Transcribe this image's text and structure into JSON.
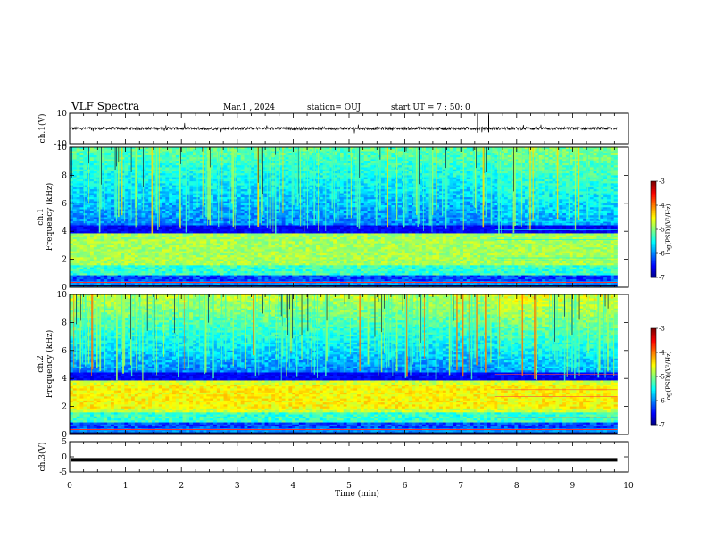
{
  "header": {
    "title": "VLF Spectra",
    "date": "Mar.1 , 2024",
    "station": "station= OUJ",
    "start": "start UT = 7 : 50: 0"
  },
  "colors": {
    "low": "#00007f",
    "mid": "#00ffaa",
    "high": "#ff0000",
    "waveform": "#000000"
  },
  "chart_data": [
    {
      "type": "line",
      "panel": "ch1-waveform",
      "ylabel": "ch.1(V)",
      "ylim": [
        -10,
        10
      ],
      "yticks": [
        "10",
        "-10"
      ],
      "x_range_min": [
        0,
        10
      ],
      "data_extent_min": 9.8,
      "mean_level_v": 0,
      "noise_amplitude_v": 1
    },
    {
      "type": "heatmap",
      "panel": "ch1-spectrogram",
      "ylabel": "ch.1 Frequency (kHz)",
      "ylim": [
        0,
        10
      ],
      "yticks": [
        "0",
        "2",
        "4",
        "6",
        "8",
        "10"
      ],
      "x_range_min": [
        0,
        10
      ],
      "data_extent_min": 9.8,
      "colorbar": {
        "label": "log(PSD)(V²/Hz)",
        "range": [
          -7,
          -3
        ],
        "ticks": [
          "-3",
          "-4",
          "-5",
          "-6",
          "-7"
        ]
      }
    },
    {
      "type": "heatmap",
      "panel": "ch2-spectrogram",
      "ylabel": "ch.2 Frequency (kHz)",
      "ylim": [
        0,
        10
      ],
      "yticks": [
        "0",
        "2",
        "4",
        "6",
        "8",
        "10"
      ],
      "x_range_min": [
        0,
        10
      ],
      "data_extent_min": 9.8,
      "colorbar": {
        "label": "log(PSD)(V²/Hz)",
        "range": [
          -7,
          -3
        ],
        "ticks": [
          "-3",
          "-4",
          "-5",
          "-6",
          "-7"
        ]
      }
    },
    {
      "type": "line",
      "panel": "ch3-waveform",
      "ylabel": "ch.3(V)",
      "ylim": [
        -5,
        5
      ],
      "yticks": [
        "5",
        "0",
        "-5"
      ],
      "x_range_min": [
        0,
        10
      ],
      "data_extent_min": 9.8,
      "mean_level_v": -1
    }
  ],
  "xaxis": {
    "label": "Time (min)",
    "ticks": [
      "0",
      "1",
      "2",
      "3",
      "4",
      "5",
      "6",
      "7",
      "8",
      "9",
      "10"
    ]
  }
}
